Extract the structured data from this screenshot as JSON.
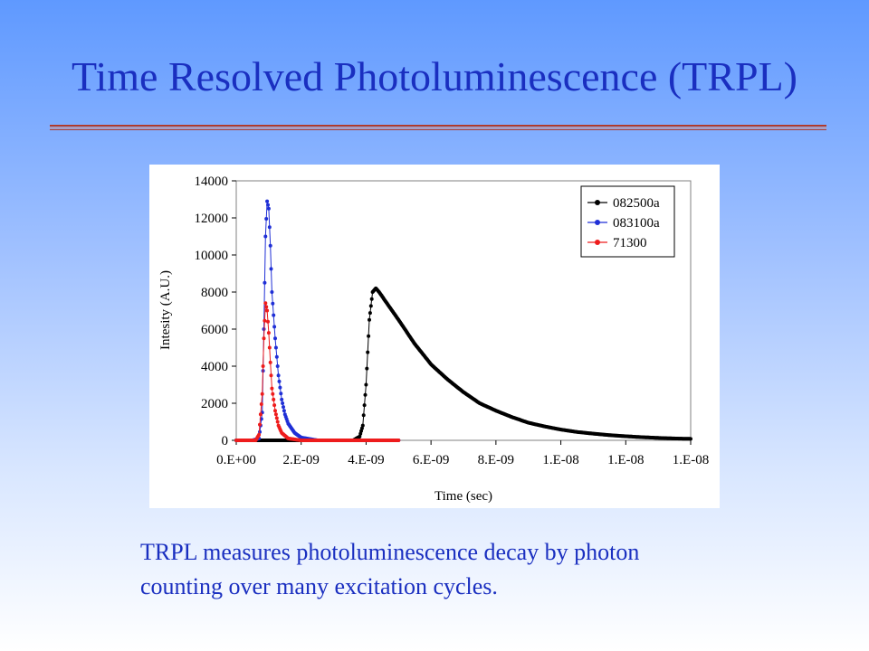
{
  "slide": {
    "title": "Time Resolved Photoluminescence (TRPL)",
    "caption_line1": "TRPL measures photoluminescence decay by photon",
    "caption_line2": "counting over many excitation cycles.",
    "title_color": "#1a2fc0"
  },
  "chart_data": {
    "type": "scatter",
    "ylabel": "Intesity (A.U.)",
    "xlabel": "Time (sec)",
    "xlim": [
      0,
      1.4e-08
    ],
    "ylim": [
      0,
      14000
    ],
    "x_tick_values": [
      0,
      2e-09,
      4e-09,
      6e-09,
      8e-09,
      1e-08,
      1.2e-08,
      1.4e-08
    ],
    "x_tick_labels": [
      "0.E+00",
      "2.E-09",
      "4.E-09",
      "6.E-09",
      "8.E-09",
      "1.E-08",
      "1.E-08",
      "1.E-08"
    ],
    "y_ticks": [
      0,
      2000,
      4000,
      6000,
      8000,
      10000,
      12000,
      14000
    ],
    "grid": false,
    "legend_position": "top-right",
    "series": [
      {
        "name": "082500a",
        "color": "#000000",
        "points": [
          [
            0,
            0
          ],
          [
            1e-09,
            0
          ],
          [
            2e-09,
            0
          ],
          [
            3e-09,
            0
          ],
          [
            3.6e-09,
            0
          ],
          [
            3.8e-09,
            200
          ],
          [
            3.9e-09,
            800
          ],
          [
            4e-09,
            3000
          ],
          [
            4.1e-09,
            6500
          ],
          [
            4.2e-09,
            8000
          ],
          [
            4.3e-09,
            8200
          ],
          [
            4.4e-09,
            8000
          ],
          [
            4.6e-09,
            7500
          ],
          [
            5e-09,
            6500
          ],
          [
            5.5e-09,
            5200
          ],
          [
            6e-09,
            4100
          ],
          [
            6.5e-09,
            3300
          ],
          [
            7e-09,
            2600
          ],
          [
            7.5e-09,
            2000
          ],
          [
            8e-09,
            1600
          ],
          [
            8.5e-09,
            1250
          ],
          [
            9e-09,
            950
          ],
          [
            9.5e-09,
            750
          ],
          [
            1e-08,
            580
          ],
          [
            1.05e-08,
            450
          ],
          [
            1.1e-08,
            360
          ],
          [
            1.15e-08,
            280
          ],
          [
            1.2e-08,
            220
          ],
          [
            1.25e-08,
            170
          ],
          [
            1.3e-08,
            130
          ],
          [
            1.35e-08,
            100
          ],
          [
            1.4e-08,
            80
          ]
        ]
      },
      {
        "name": "083100a",
        "color": "#1f2fd6",
        "points": [
          [
            0,
            0
          ],
          [
            5e-10,
            0
          ],
          [
            7e-10,
            100
          ],
          [
            8e-10,
            1500
          ],
          [
            8.5e-10,
            6000
          ],
          [
            9e-10,
            11000
          ],
          [
            9.5e-10,
            12900
          ],
          [
            1e-09,
            12500
          ],
          [
            1.05e-09,
            10500
          ],
          [
            1.1e-09,
            8000
          ],
          [
            1.2e-09,
            5500
          ],
          [
            1.3e-09,
            3500
          ],
          [
            1.4e-09,
            2200
          ],
          [
            1.5e-09,
            1400
          ],
          [
            1.6e-09,
            900
          ],
          [
            1.8e-09,
            400
          ],
          [
            2e-09,
            150
          ],
          [
            2.5e-09,
            0
          ],
          [
            3e-09,
            0
          ],
          [
            4e-09,
            0
          ],
          [
            5e-09,
            0
          ]
        ]
      },
      {
        "name": "71300",
        "color": "#ee1c1c",
        "points": [
          [
            0,
            0
          ],
          [
            6e-10,
            0
          ],
          [
            7e-10,
            300
          ],
          [
            8e-10,
            2500
          ],
          [
            8.5e-10,
            5500
          ],
          [
            9e-10,
            7400
          ],
          [
            9.5e-10,
            7000
          ],
          [
            1e-09,
            5800
          ],
          [
            1.05e-09,
            4200
          ],
          [
            1.1e-09,
            2800
          ],
          [
            1.2e-09,
            1600
          ],
          [
            1.3e-09,
            800
          ],
          [
            1.4e-09,
            400
          ],
          [
            1.6e-09,
            100
          ],
          [
            2e-09,
            0
          ],
          [
            3e-09,
            0
          ],
          [
            4e-09,
            0
          ],
          [
            5e-09,
            0
          ]
        ]
      }
    ]
  }
}
